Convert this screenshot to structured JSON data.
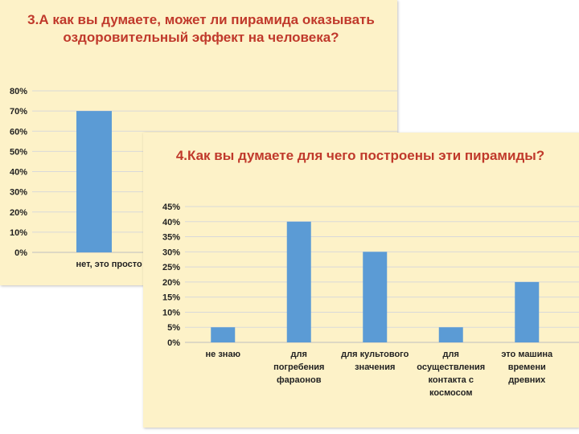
{
  "chart_data": [
    {
      "type": "bar",
      "title": "3.А как вы думаете, может ли пирамида оказывать оздоровительный эффект на человека?",
      "categories": [
        "нет, это просто фигур"
      ],
      "values": [
        70
      ],
      "ylim": [
        0,
        80
      ],
      "yticks": [
        "0%",
        "10%",
        "20%",
        "30%",
        "40%",
        "50%",
        "60%",
        "70%",
        "80%"
      ],
      "grid": true,
      "bar_color": "#5b9bd5"
    },
    {
      "type": "bar",
      "title": "4.Как вы думаете для чего построены эти пирамиды?",
      "categories": [
        "не знаю",
        "для погребения фараонов",
        "для культового значения",
        "для осуществления контакта с космосом",
        "это машина времени древних"
      ],
      "values": [
        5,
        40,
        30,
        5,
        20
      ],
      "ylim": [
        0,
        45
      ],
      "yticks": [
        "0%",
        "5%",
        "10%",
        "15%",
        "20%",
        "25%",
        "30%",
        "35%",
        "40%",
        "45%"
      ],
      "grid": true,
      "bar_color": "#5b9bd5"
    }
  ]
}
